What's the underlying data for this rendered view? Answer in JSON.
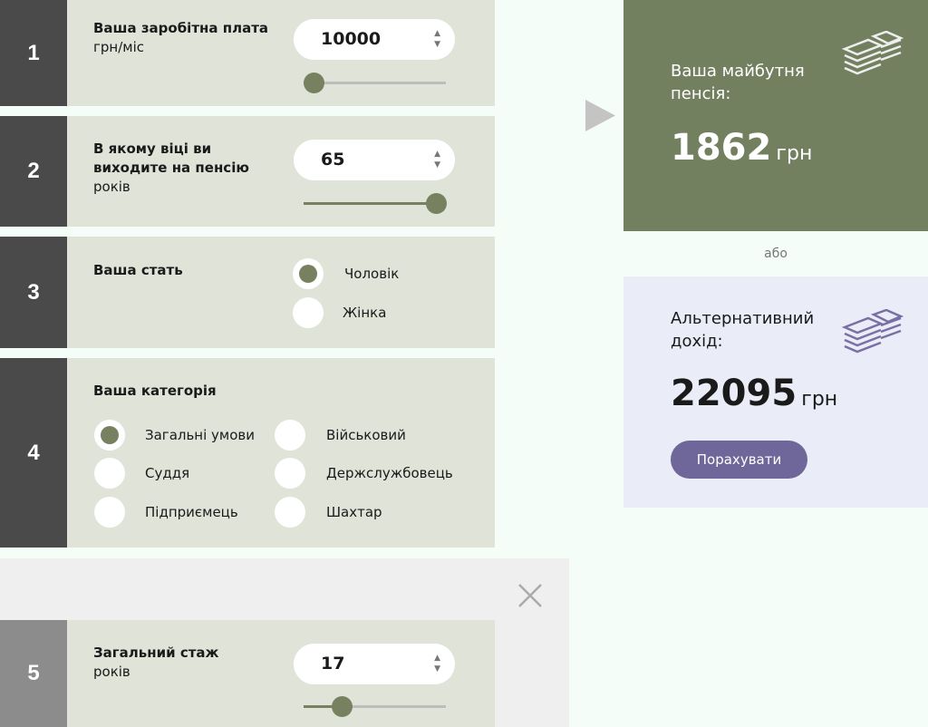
{
  "steps": [
    {
      "number": "1",
      "title": "Ваша заробітна плата",
      "unit": "грн/міс",
      "value": "10000",
      "slider_percent": 7
    },
    {
      "number": "2",
      "title": "В якому віці ви виходите на пенсію",
      "unit": "років",
      "value": "65",
      "slider_percent": 93
    },
    {
      "number": "3",
      "title": "Ваша стать",
      "options": [
        "Чоловік",
        "Жінка"
      ],
      "selected": "Чоловік"
    },
    {
      "number": "4",
      "title": "Ваша категорія",
      "options": [
        "Загальні умови",
        "Військовий",
        "Суддя",
        "Держслужбовець",
        "Підприємець",
        "Шахтар"
      ],
      "selected": "Загальні умови"
    },
    {
      "number": "5",
      "title": "Загальний стаж",
      "unit": "років",
      "value": "17",
      "slider_percent": 27
    }
  ],
  "result": {
    "title": "Ваша майбутня пенсія:",
    "amount": "1862",
    "currency": "грн",
    "or": "або"
  },
  "alternative": {
    "title": "Альтернативний дохід:",
    "amount": "22095",
    "currency": "грн",
    "button": "Порахувати"
  },
  "colors": {
    "accent": "#77815f",
    "result_bg": "#738060",
    "alt_bg": "#eaedf8",
    "button": "#6f6799"
  },
  "icons": [
    "money-stack-icon",
    "close-icon",
    "play-arrow-icon"
  ]
}
